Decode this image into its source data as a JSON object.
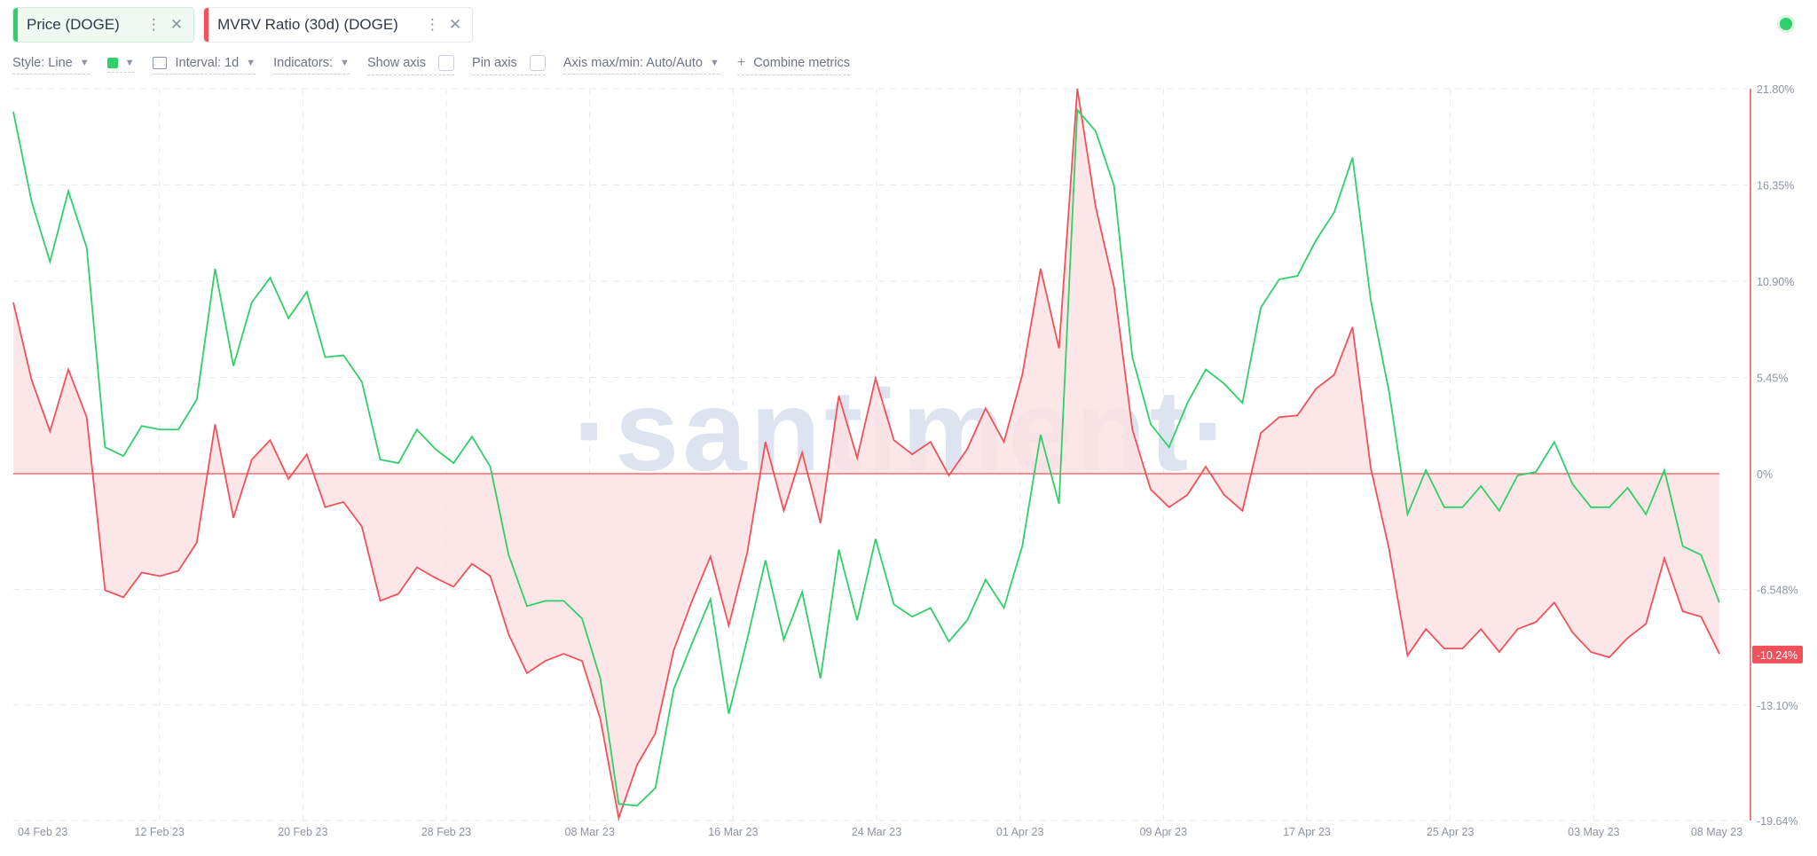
{
  "tabs": [
    {
      "label": "Price (DOGE)",
      "color": "#2fcf6a",
      "active": true,
      "menu_icon": "kebab-icon",
      "close_icon": "close-icon"
    },
    {
      "label": "MVRV Ratio (30d) (DOGE)",
      "color": "#f0515a",
      "active": false,
      "menu_icon": "kebab-icon",
      "close_icon": "close-icon"
    }
  ],
  "toolbar": {
    "style_label": "Style: Line",
    "interval_label": "Interval: 1d",
    "indicators_label": "Indicators:",
    "show_axis_label": "Show axis",
    "pin_axis_label": "Pin axis",
    "axis_range_label": "Axis max/min: Auto/Auto",
    "combine_label": "Combine metrics",
    "combine_icon": "+",
    "selected_color": "#2fcf6a"
  },
  "watermark": "·santiment·",
  "chart_data": {
    "type": "line",
    "x_tick_labels": [
      "04 Feb 23",
      "12 Feb 23",
      "20 Feb 23",
      "28 Feb 23",
      "08 Mar 23",
      "16 Mar 23",
      "24 Mar 23",
      "01 Apr 23",
      "09 Apr 23",
      "17 Apr 23",
      "25 Apr 23",
      "03 May 23",
      "08 May 23"
    ],
    "y_tick_labels": [
      "21.80%",
      "16.35%",
      "10.90%",
      "5.45%",
      "0%",
      "-6.548%",
      "-13.10%",
      "-19.64%"
    ],
    "y_ticks": [
      21.8,
      16.35,
      10.9,
      5.45,
      0,
      -6.548,
      -13.1,
      -19.64
    ],
    "ylim": [
      -19.64,
      21.8
    ],
    "current_value_label": "-10.24%",
    "current_value": -10.24,
    "grid": true,
    "series": [
      {
        "name": "Price (DOGE)",
        "color": "#2fcf6a",
        "axis": "hidden",
        "values": [
          20.5,
          15.4,
          12.0,
          16.0,
          12.8,
          1.5,
          1.0,
          2.7,
          2.5,
          2.5,
          4.2,
          11.6,
          6.1,
          9.7,
          11.1,
          8.8,
          10.3,
          6.6,
          6.7,
          5.2,
          0.8,
          0.6,
          2.5,
          1.4,
          0.6,
          2.1,
          0.4,
          -4.6,
          -7.5,
          -7.2,
          -7.2,
          -8.2,
          -11.6,
          -18.7,
          -18.8,
          -17.8,
          -12.2,
          -9.6,
          -7.1,
          -13.6,
          -9.4,
          -4.9,
          -9.4,
          -6.7,
          -11.6,
          -4.3,
          -8.3,
          -3.7,
          -7.4,
          -8.1,
          -7.6,
          -9.5,
          -8.3,
          -6.0,
          -7.6,
          -4.1,
          2.2,
          -1.7,
          20.6,
          19.4,
          16.3,
          6.6,
          2.8,
          1.5,
          4.0,
          5.9,
          5.1,
          4.0,
          9.4,
          11.0,
          11.2,
          13.2,
          14.8,
          17.9,
          9.8,
          4.6,
          -2.3,
          0.2,
          -1.9,
          -1.9,
          -0.7,
          -2.1,
          -0.1,
          0.1,
          1.8,
          -0.6,
          -1.9,
          -1.9,
          -0.8,
          -2.3,
          0.2,
          -4.1,
          -4.6,
          -7.3
        ]
      },
      {
        "name": "MVRV Ratio (30d) (DOGE)",
        "color": "#f0515a",
        "axis": "right",
        "values": [
          9.7,
          5.3,
          2.4,
          5.9,
          3.2,
          -6.6,
          -7.0,
          -5.6,
          -5.8,
          -5.5,
          -3.9,
          2.8,
          -2.5,
          0.8,
          1.9,
          -0.3,
          1.1,
          -1.9,
          -1.6,
          -3.0,
          -7.2,
          -6.8,
          -5.3,
          -5.9,
          -6.4,
          -5.1,
          -5.8,
          -9.1,
          -11.3,
          -10.6,
          -10.2,
          -10.6,
          -13.9,
          -19.5,
          -16.5,
          -14.7,
          -10.0,
          -7.2,
          -4.7,
          -8.6,
          -4.5,
          1.8,
          -2.1,
          1.2,
          -2.8,
          4.4,
          0.9,
          5.4,
          1.9,
          1.1,
          1.8,
          -0.1,
          1.4,
          3.7,
          1.8,
          5.6,
          11.6,
          7.1,
          21.8,
          15.1,
          10.6,
          2.5,
          -0.9,
          -1.9,
          -1.2,
          0.4,
          -1.2,
          -2.1,
          2.3,
          3.2,
          3.3,
          4.8,
          5.6,
          8.3,
          0.3,
          -4.3,
          -10.3,
          -8.8,
          -9.9,
          -9.9,
          -8.8,
          -10.1,
          -8.8,
          -8.4,
          -7.3,
          -9.0,
          -10.1,
          -10.4,
          -9.3,
          -8.5,
          -4.8,
          -7.8,
          -8.1,
          -10.2
        ]
      }
    ]
  }
}
